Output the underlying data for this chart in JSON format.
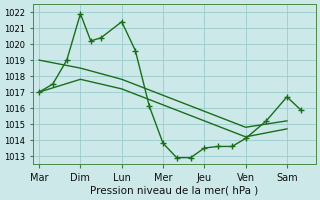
{
  "xlabel": "Pression niveau de la mer( hPa )",
  "bg_color": "#cce8e8",
  "grid_color": "#99cccc",
  "line_color": "#1a6e1a",
  "ylim": [
    1012.5,
    1022.5
  ],
  "yticks": [
    1013,
    1014,
    1015,
    1016,
    1017,
    1018,
    1019,
    1020,
    1021,
    1022
  ],
  "day_labels": [
    "Mar",
    "Dim",
    "Lun",
    "Mer",
    "Jeu",
    "Ven",
    "Sam"
  ],
  "day_positions": [
    0,
    1,
    2,
    3,
    4,
    5,
    6
  ],
  "xlim": [
    -0.15,
    6.7
  ],
  "series1_x": [
    0.0,
    0.33,
    0.67,
    1.0,
    1.25,
    1.5,
    2.0,
    2.33,
    2.67,
    3.0,
    3.33,
    3.67,
    4.0,
    4.33,
    4.67,
    5.0,
    5.5,
    6.0,
    6.33
  ],
  "series1_y": [
    1017.0,
    1017.5,
    1019.0,
    1021.9,
    1020.2,
    1020.4,
    1021.4,
    1019.6,
    1016.1,
    1013.8,
    1012.9,
    1012.9,
    1013.5,
    1013.6,
    1013.6,
    1014.1,
    1015.2,
    1016.7,
    1015.9
  ],
  "series2_x": [
    0.0,
    1.0,
    2.0,
    3.0,
    4.0,
    5.0,
    6.0
  ],
  "series2_y": [
    1019.0,
    1018.5,
    1017.8,
    1016.8,
    1015.8,
    1014.8,
    1015.2
  ],
  "series3_x": [
    0.0,
    1.0,
    2.0,
    3.0,
    4.0,
    5.0,
    6.0
  ],
  "series3_y": [
    1017.0,
    1017.8,
    1017.2,
    1016.2,
    1015.2,
    1014.2,
    1014.7
  ]
}
